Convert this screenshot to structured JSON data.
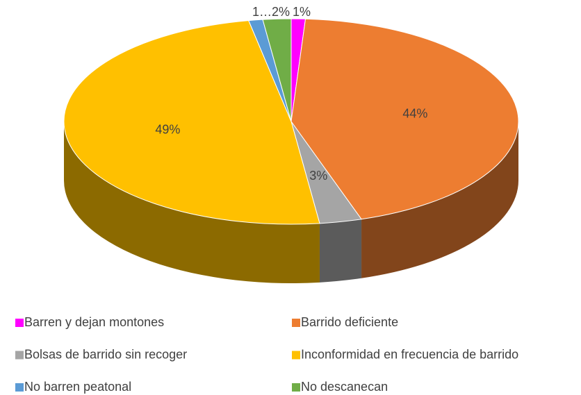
{
  "chart_data": {
    "type": "pie",
    "categories": [
      "Barren y dejan montones",
      "Barrido deficiente",
      "Bolsas de barrido sin recoger",
      "Inconformidad en frecuencia de barrido",
      "No barren peatonal",
      "No descanecan"
    ],
    "values": [
      1,
      44,
      3,
      49,
      1,
      2
    ],
    "value_labels": [
      "1%",
      "44%",
      "3%",
      "49%",
      "1…",
      "2%"
    ],
    "colors": [
      "#ff00ff",
      "#ed7d31",
      "#a5a5a5",
      "#ffc000",
      "#5b9bd5",
      "#70ad47"
    ],
    "legend": "bottom"
  }
}
